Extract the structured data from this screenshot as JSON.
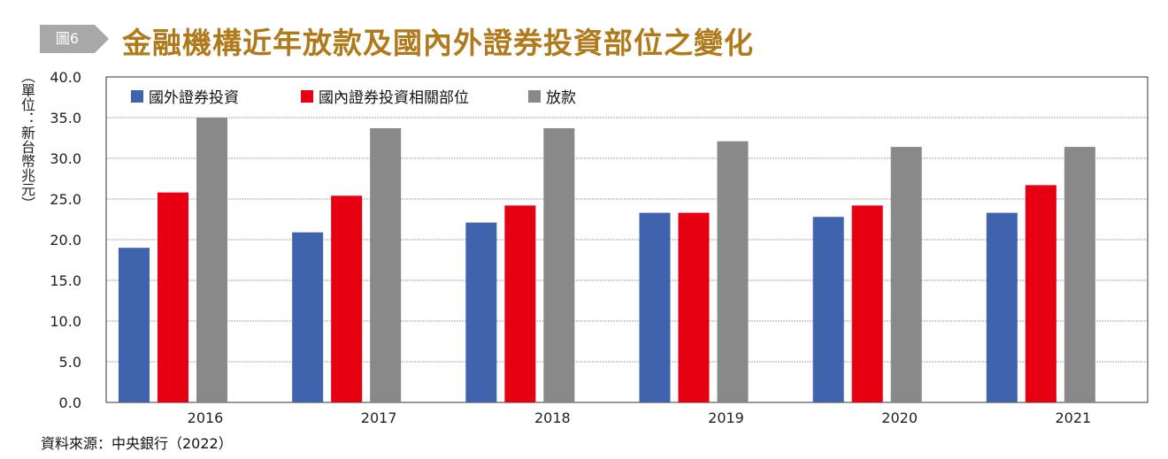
{
  "header": {
    "badge": "圖6",
    "title": "金融機構近年放款及國內外證券投資部位之變化"
  },
  "source": "資料來源：中央銀行（2022）",
  "chart_data": {
    "type": "bar",
    "title": "金融機構近年放款及國內外證券投資部位之變化",
    "ylabel": "（單位：新台幣兆元）",
    "xlabel": "",
    "ylim": [
      0,
      40
    ],
    "yticks": [
      "0.0",
      "5.0",
      "10.0",
      "15.0",
      "20.0",
      "25.0",
      "30.0",
      "35.0",
      "40.0"
    ],
    "grid": true,
    "legend": "top-left",
    "categories": [
      "2016",
      "2017",
      "2018",
      "2019",
      "2020",
      "2021"
    ],
    "series": [
      {
        "name": "國外證券投資",
        "color": "#3f63ad",
        "values": [
          19.0,
          20.9,
          22.1,
          23.3,
          22.8,
          23.3
        ]
      },
      {
        "name": "國內證券投資相關部位",
        "color": "#e60012",
        "values": [
          25.8,
          25.4,
          24.2,
          23.3,
          24.2,
          26.7
        ]
      },
      {
        "name": "放款",
        "color": "#898989",
        "values": [
          35.0,
          33.7,
          33.7,
          32.1,
          31.4,
          31.4
        ]
      }
    ]
  }
}
